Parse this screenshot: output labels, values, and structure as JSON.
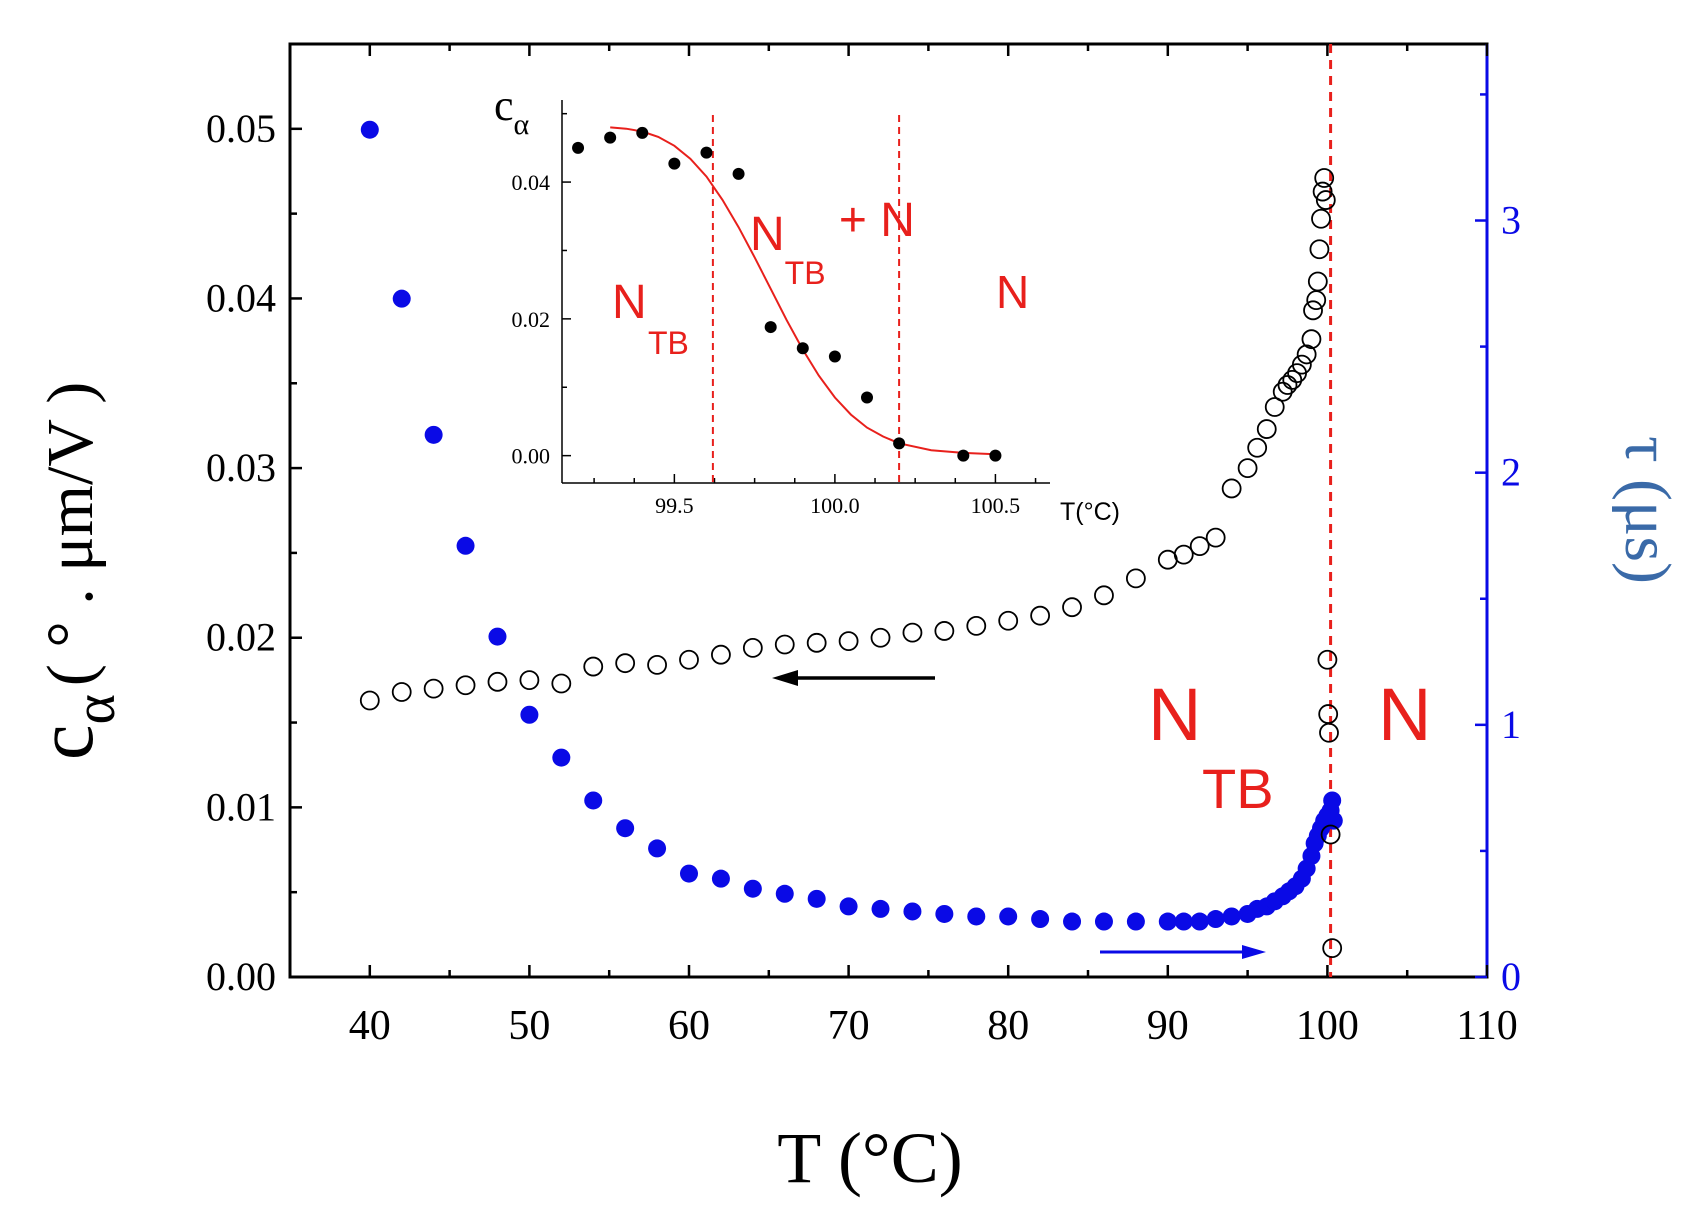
{
  "chart_data": [
    {
      "id": "main",
      "type": "scatter",
      "xlabel": "T (°C)",
      "ylabel": "c",
      "ylabel_sub": "α",
      "ylabel_unit": "( ° . μm/V )",
      "y2label": "τ (μs)",
      "xlim": [
        35,
        110
      ],
      "ylim": [
        0,
        0.055
      ],
      "y2lim": [
        0,
        3.7
      ],
      "xticks": [
        40,
        50,
        60,
        70,
        80,
        90,
        100,
        110
      ],
      "yticks": [
        0,
        0.01,
        0.02,
        0.03,
        0.04,
        0.05
      ],
      "ytick_labels": [
        "0.00",
        "0.01",
        "0.02",
        "0.03",
        "0.04",
        "0.05"
      ],
      "y2ticks": [
        0,
        1,
        2,
        3
      ],
      "colors": {
        "c_alpha": "#000000",
        "tau": "#0a0ae6",
        "right_axis": "#0a0ae6",
        "right_label": "#3a6aa8",
        "phase": "#e8201c"
      },
      "series": [
        {
          "name": "c_alpha",
          "axis": "left",
          "marker": "open-circle",
          "x": [
            40,
            42,
            44,
            46,
            48,
            50,
            52,
            54,
            56,
            58,
            60,
            62,
            64,
            66,
            68,
            70,
            72,
            74,
            76,
            78,
            80,
            82,
            84,
            86,
            88,
            90,
            91,
            92,
            93,
            94,
            95,
            95.6,
            96.2,
            96.7,
            97.2,
            97.5,
            97.8,
            98.1,
            98.4,
            98.7,
            99,
            99.1,
            99.3,
            99.4,
            99.5,
            99.6,
            99.7,
            99.8,
            99.9,
            100,
            100.05,
            100.1,
            100.2,
            100.3
          ],
          "values": [
            0.0163,
            0.0168,
            0.017,
            0.0172,
            0.0174,
            0.0175,
            0.0173,
            0.0183,
            0.0185,
            0.0184,
            0.0187,
            0.019,
            0.0194,
            0.0196,
            0.0197,
            0.0198,
            0.02,
            0.0203,
            0.0204,
            0.0207,
            0.021,
            0.0213,
            0.0218,
            0.0225,
            0.0235,
            0.0246,
            0.0249,
            0.0254,
            0.0259,
            0.0288,
            0.03,
            0.0312,
            0.0323,
            0.0336,
            0.0345,
            0.0349,
            0.0352,
            0.0356,
            0.0361,
            0.0367,
            0.0376,
            0.0393,
            0.0399,
            0.041,
            0.0429,
            0.0447,
            0.0463,
            0.0471,
            0.0458,
            0.0187,
            0.0155,
            0.0144,
            0.0084,
            0.0017
          ]
        },
        {
          "name": "tau",
          "axis": "right",
          "marker": "filled-circle",
          "x": [
            40,
            42,
            44,
            46,
            48,
            50,
            52,
            54,
            56,
            58,
            60,
            62,
            64,
            66,
            68,
            70,
            72,
            74,
            76,
            78,
            80,
            82,
            84,
            86,
            88,
            90,
            91,
            92,
            93,
            94,
            95,
            95.6,
            96.2,
            96.7,
            97.2,
            97.6,
            98,
            98.4,
            98.7,
            99,
            99.2,
            99.4,
            99.6,
            99.8,
            100,
            100.2,
            100.3,
            100.4
          ],
          "values": [
            3.36,
            2.69,
            2.15,
            1.71,
            1.35,
            1.04,
            0.87,
            0.7,
            0.59,
            0.51,
            0.41,
            0.39,
            0.35,
            0.33,
            0.31,
            0.28,
            0.27,
            0.26,
            0.25,
            0.24,
            0.24,
            0.23,
            0.22,
            0.22,
            0.22,
            0.22,
            0.22,
            0.22,
            0.23,
            0.24,
            0.25,
            0.27,
            0.28,
            0.3,
            0.32,
            0.34,
            0.36,
            0.39,
            0.43,
            0.48,
            0.53,
            0.56,
            0.59,
            0.62,
            0.64,
            0.66,
            0.7,
            0.62
          ]
        }
      ],
      "annotations": {
        "phase_left_main": "N",
        "phase_left_sub": "TB",
        "phase_right": "N",
        "transition_line_x": 100.2
      }
    },
    {
      "id": "inset",
      "type": "scatter",
      "xlabel": "T(°C)",
      "ylabel": "c",
      "ylabel_sub": "α",
      "xlim": [
        99.15,
        100.67
      ],
      "ylim": [
        -0.004,
        0.052
      ],
      "xticks": [
        99.5,
        100.0,
        100.5
      ],
      "xtick_labels": [
        "99.5",
        "100.0",
        "100.5"
      ],
      "yticks": [
        0,
        0.02,
        0.04
      ],
      "ytick_labels": [
        "0.00",
        "0.02",
        "0.04"
      ],
      "series": [
        {
          "name": "c_alpha",
          "marker": "filled-circle",
          "color": "#000000",
          "x": [
            99.2,
            99.3,
            99.4,
            99.5,
            99.6,
            99.7,
            99.8,
            99.9,
            100.0,
            100.1,
            100.2,
            100.4,
            100.5
          ],
          "values": [
            0.045,
            0.0465,
            0.0472,
            0.0427,
            0.0443,
            0.0412,
            0.0188,
            0.0157,
            0.0145,
            0.0085,
            0.0018,
            0.0,
            0.0
          ]
        },
        {
          "name": "fit",
          "type": "line",
          "color": "#e8201c",
          "x": [
            99.3,
            99.35,
            99.4,
            99.45,
            99.5,
            99.55,
            99.6,
            99.65,
            99.7,
            99.75,
            99.8,
            99.85,
            99.9,
            99.95,
            100.0,
            100.05,
            100.1,
            100.15,
            100.2,
            100.3,
            100.4,
            100.5
          ],
          "values": [
            0.048,
            0.0478,
            0.0474,
            0.0466,
            0.0453,
            0.0434,
            0.0408,
            0.0374,
            0.0334,
            0.029,
            0.0244,
            0.0198,
            0.0155,
            0.0117,
            0.0085,
            0.006,
            0.0041,
            0.0028,
            0.0018,
            0.0008,
            0.0004,
            0.0002
          ]
        }
      ],
      "vlines": [
        99.62,
        100.2
      ],
      "region_labels": {
        "ntb_main": "N",
        "ntb_sub": "TB",
        "mix_main": "N",
        "mix_sub": "TB",
        "mix_rest": " + N",
        "n": "N"
      }
    }
  ]
}
